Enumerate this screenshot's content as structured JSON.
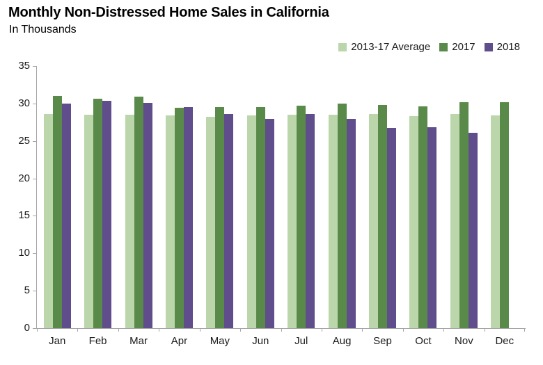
{
  "chart_data": {
    "type": "bar",
    "title": "Monthly Non-Distressed Home Sales in California",
    "subtitle": "In Thousands",
    "categories": [
      "Jan",
      "Feb",
      "Mar",
      "Apr",
      "May",
      "Jun",
      "Jul",
      "Aug",
      "Sep",
      "Oct",
      "Nov",
      "Dec"
    ],
    "series": [
      {
        "name": "2013-17 Average",
        "color": "#bbd6aa",
        "values": [
          28.6,
          28.5,
          28.5,
          28.4,
          28.2,
          28.4,
          28.5,
          28.5,
          28.6,
          28.3,
          28.6,
          28.4
        ]
      },
      {
        "name": "2017",
        "color": "#5a8a4a",
        "values": [
          31.0,
          30.6,
          30.9,
          29.4,
          29.5,
          29.5,
          29.7,
          30.0,
          29.8,
          29.6,
          30.2,
          30.2
        ]
      },
      {
        "name": "2018",
        "color": "#5f4d8c",
        "values": [
          30.0,
          30.4,
          30.1,
          29.5,
          28.6,
          27.9,
          28.6,
          27.9,
          26.7,
          26.8,
          26.1,
          null
        ]
      }
    ],
    "ylim": [
      0,
      35
    ],
    "ytick_step": 5,
    "xlabel": "",
    "ylabel": "",
    "grid": false,
    "legend_position": "top-right",
    "axis_color": "#a6a6a6",
    "text_color": "#1a1a1a"
  }
}
